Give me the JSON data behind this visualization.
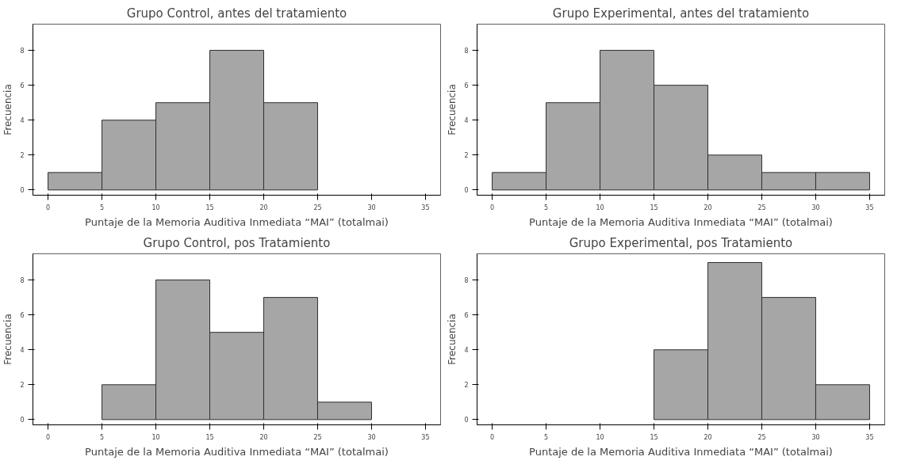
{
  "chart_data": [
    {
      "type": "histogram",
      "title": "Grupo Control, antes del tratamiento",
      "xlabel": "Puntaje de la Memoria Auditiva Inmediata “MAI” (totalmai)",
      "ylabel": "Frecuencia",
      "bins": [
        0,
        5,
        10,
        15,
        20,
        25
      ],
      "values": [
        1,
        4,
        5,
        8,
        5
      ],
      "color": "#a6a6a6",
      "xlim": [
        -1.4,
        36.4
      ],
      "ylim": [
        -0.3,
        9.5
      ],
      "xticks": [
        0,
        5,
        10,
        15,
        20,
        25,
        30,
        35
      ],
      "yticks": [
        0,
        2,
        4,
        6,
        8
      ],
      "grid": false
    },
    {
      "type": "histogram",
      "title": "Grupo Experimental, antes del tratamiento",
      "xlabel": "Puntaje de la Memoria Auditiva Inmediata “MAI” (totalmai)",
      "ylabel": "Frecuencia",
      "bins": [
        0,
        5,
        10,
        15,
        20,
        25,
        30,
        35
      ],
      "values": [
        1,
        5,
        8,
        6,
        2,
        1,
        1
      ],
      "color": "#a6a6a6",
      "xlim": [
        -1.4,
        36.4
      ],
      "ylim": [
        -0.3,
        9.5
      ],
      "xticks": [
        0,
        5,
        10,
        15,
        20,
        25,
        30,
        35
      ],
      "yticks": [
        0,
        2,
        4,
        6,
        8
      ],
      "grid": false
    },
    {
      "type": "histogram",
      "title": "Grupo Control, pos Tratamiento",
      "xlabel": "Puntaje de la Memoria Auditiva Inmediata “MAI” (totalmai)",
      "ylabel": "Frecuencia",
      "bins": [
        5,
        10,
        15,
        20,
        25,
        30
      ],
      "values": [
        2,
        8,
        5,
        7,
        1
      ],
      "color": "#a6a6a6",
      "xlim": [
        -1.4,
        36.4
      ],
      "ylim": [
        -0.3,
        9.5
      ],
      "xticks": [
        0,
        5,
        10,
        15,
        20,
        25,
        30,
        35
      ],
      "yticks": [
        0,
        2,
        4,
        6,
        8
      ],
      "grid": false
    },
    {
      "type": "histogram",
      "title": "Grupo Experimental, pos Tratamiento",
      "xlabel": "Puntaje de la Memoria Auditiva Inmediata “MAI” (totalmai)",
      "ylabel": "Frecuencia",
      "bins": [
        15,
        20,
        25,
        30,
        35
      ],
      "values": [
        4,
        9,
        7,
        2
      ],
      "color": "#a6a6a6",
      "xlim": [
        -1.4,
        36.4
      ],
      "ylim": [
        -0.3,
        9.5
      ],
      "xticks": [
        0,
        5,
        10,
        15,
        20,
        25,
        30,
        35
      ],
      "yticks": [
        0,
        2,
        4,
        6,
        8
      ],
      "grid": false
    }
  ]
}
